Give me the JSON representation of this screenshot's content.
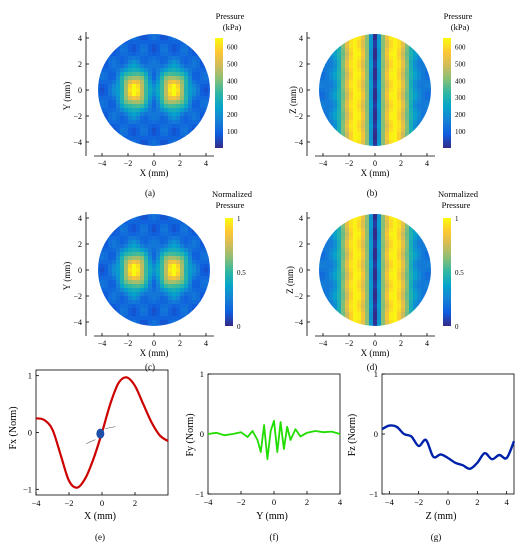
{
  "colors": {
    "axis": "#000000",
    "fx_line": "#cc0000",
    "fy_line": "#22dd00",
    "fz_line": "#0022aa",
    "marker": "#1f4fa8",
    "parula": [
      "#352a87",
      "#0f5cdd",
      "#1481d6",
      "#06a4ca",
      "#2eb7a4",
      "#87bf77",
      "#d1bb59",
      "#fec832",
      "#f9fb0e"
    ]
  },
  "panels": {
    "a": {
      "caption": "(a)",
      "xlabel": "X (mm)",
      "ylabel": "Y (mm)",
      "colorbar_title_line1": "Pressure",
      "colorbar_title_line2": "(kPa)",
      "colorbar_ticks": [
        "600",
        "500",
        "400",
        "300",
        "200",
        "100"
      ]
    },
    "b": {
      "caption": "(b)",
      "xlabel": "X (mm)",
      "ylabel": "Z (mm)",
      "colorbar_title_line1": "Pressure",
      "colorbar_title_line2": "(kPa)",
      "colorbar_ticks": [
        "600",
        "500",
        "400",
        "300",
        "200",
        "100"
      ]
    },
    "c": {
      "caption": "(c)",
      "xlabel": "X (mm)",
      "ylabel": "Y (mm)",
      "colorbar_title_line1": "Normalized",
      "colorbar_title_line2": "Pressure",
      "colorbar_ticks": [
        "1",
        "0.5",
        "0"
      ]
    },
    "d": {
      "caption": "(d)",
      "xlabel": "X (mm)",
      "ylabel": "Z (mm)",
      "colorbar_title_line1": "Normalized",
      "colorbar_title_line2": "Pressure",
      "colorbar_ticks": [
        "1",
        "0.5",
        "0"
      ]
    },
    "e": {
      "caption": "(e)",
      "xlabel": "X (mm)",
      "ylabel": "Fx (Norm)"
    },
    "f": {
      "caption": "(f)",
      "xlabel": "Y (mm)",
      "ylabel": "Fy (Norm)"
    },
    "g": {
      "caption": "(g)",
      "xlabel": "Z (mm)",
      "ylabel": "Fz (Norm)"
    }
  },
  "chart_data": [
    {
      "type": "heatmap",
      "panel": "a",
      "xlabel": "X (mm)",
      "ylabel": "Y (mm)",
      "xticks": [
        -4,
        -2,
        0,
        2,
        4
      ],
      "yticks": [
        4,
        2,
        0,
        -2,
        -4
      ],
      "xlim": [
        -4,
        4
      ],
      "ylim": [
        -4.5,
        4.5
      ],
      "colorbar_ticks": [
        600,
        500,
        400,
        300,
        200,
        100
      ],
      "colorbar_range": [
        0,
        650
      ],
      "pattern": "two lobes at x=±1.5 mm"
    },
    {
      "type": "heatmap",
      "panel": "b",
      "xlabel": "X (mm)",
      "ylabel": "Z (mm)",
      "xticks": [
        -4,
        -2,
        0,
        2,
        4
      ],
      "yticks": [
        4,
        2,
        0,
        -2,
        -4
      ],
      "xlim": [
        -4,
        4
      ],
      "ylim": [
        -4.5,
        4.5
      ],
      "colorbar_ticks": [
        600,
        500,
        400,
        300,
        200,
        100
      ],
      "colorbar_range": [
        0,
        650
      ],
      "pattern": "vertical bands, maxima at x=±1.5 mm, minimum at x=0"
    },
    {
      "type": "heatmap",
      "panel": "c",
      "xlabel": "X (mm)",
      "ylabel": "Y (mm)",
      "xticks": [
        -4,
        -2,
        0,
        2,
        4
      ],
      "yticks": [
        4,
        2,
        0,
        -2,
        -4
      ],
      "xlim": [
        -4,
        4
      ],
      "ylim": [
        -4.5,
        4.5
      ],
      "colorbar_ticks": [
        1,
        0.5,
        0
      ],
      "colorbar_range": [
        0,
        1
      ],
      "pattern": "two lobes at x=±1.5 mm"
    },
    {
      "type": "heatmap",
      "panel": "d",
      "xlabel": "X (mm)",
      "ylabel": "Z (mm)",
      "xticks": [
        -4,
        -2,
        0,
        2,
        4
      ],
      "yticks": [
        4,
        2,
        0,
        -2,
        -4
      ],
      "xlim": [
        -4,
        4
      ],
      "ylim": [
        -4.5,
        4.5
      ],
      "colorbar_ticks": [
        1,
        0.5,
        0
      ],
      "colorbar_range": [
        0,
        1
      ],
      "pattern": "vertical bands, maxima at x=±1.5 mm, minimum at x=0"
    },
    {
      "type": "line",
      "panel": "e",
      "xlabel": "X (mm)",
      "ylabel": "Fx (Norm)",
      "xlim": [
        -4,
        4
      ],
      "ylim": [
        -1.1,
        1.1
      ],
      "xticks": [
        -4,
        -2,
        0,
        2
      ],
      "yticks": [
        1,
        0,
        -1
      ],
      "x": [
        -4,
        -3.5,
        -3,
        -2.5,
        -2,
        -1.5,
        -1,
        -0.5,
        0,
        0.5,
        1,
        1.5,
        2,
        2.5,
        3,
        3.5,
        4
      ],
      "y": [
        0.25,
        0.22,
        0.05,
        -0.4,
        -0.85,
        -0.97,
        -0.8,
        -0.45,
        0.0,
        0.5,
        0.87,
        0.97,
        0.82,
        0.5,
        0.18,
        -0.05,
        -0.15
      ],
      "marker": {
        "x": -0.1,
        "y": -0.02
      }
    },
    {
      "type": "line",
      "panel": "f",
      "xlabel": "Y (mm)",
      "ylabel": "Fy (Norm)",
      "xlim": [
        -4,
        4
      ],
      "ylim": [
        -1,
        1
      ],
      "xticks": [
        -4,
        -2,
        0,
        2,
        4
      ],
      "yticks": [
        1,
        0,
        -1
      ],
      "x": [
        -4,
        -3.5,
        -3,
        -2.5,
        -2,
        -1.6,
        -1.3,
        -1.0,
        -0.8,
        -0.6,
        -0.4,
        -0.2,
        0,
        0.2,
        0.4,
        0.6,
        0.8,
        1.0,
        1.3,
        1.6,
        2,
        2.5,
        3,
        3.5,
        4
      ],
      "y": [
        0.0,
        0.02,
        -0.02,
        0.0,
        0.03,
        -0.05,
        0.05,
        -0.1,
        -0.3,
        0.15,
        -0.42,
        0.05,
        0.22,
        -0.3,
        0.2,
        -0.25,
        0.12,
        -0.1,
        0.08,
        -0.04,
        0.02,
        0.05,
        0.03,
        0.04,
        0.0
      ]
    },
    {
      "type": "line",
      "panel": "g",
      "xlabel": "Z (mm)",
      "ylabel": "Fz (Norm)",
      "xlim": [
        -4.5,
        4.5
      ],
      "ylim": [
        -1,
        1
      ],
      "xticks": [
        -4,
        -2,
        0,
        2,
        4
      ],
      "yticks": [
        1,
        0,
        -1
      ],
      "x": [
        -4.5,
        -4,
        -3.5,
        -3,
        -2.5,
        -2,
        -1.5,
        -1,
        -0.5,
        0,
        0.5,
        1,
        1.5,
        2,
        2.5,
        3,
        3.5,
        4,
        4.5
      ],
      "y": [
        0.08,
        0.14,
        0.12,
        0.0,
        -0.04,
        -0.2,
        -0.1,
        -0.38,
        -0.34,
        -0.4,
        -0.48,
        -0.52,
        -0.58,
        -0.48,
        -0.32,
        -0.42,
        -0.35,
        -0.4,
        -0.12
      ]
    }
  ]
}
